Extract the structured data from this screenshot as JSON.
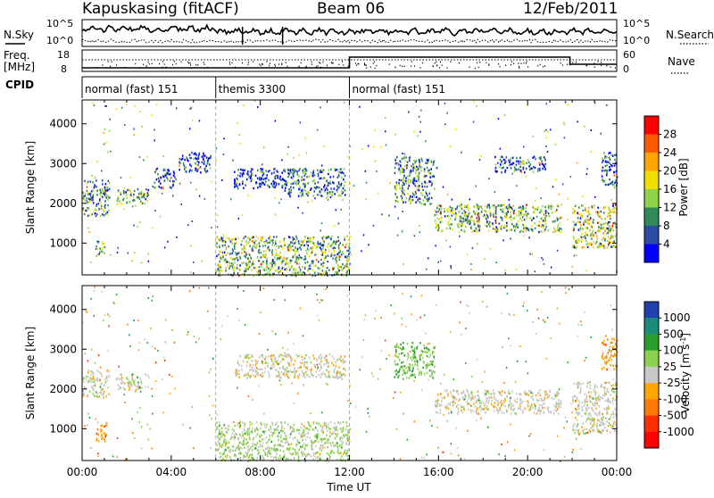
{
  "header": {
    "station": "Kapuskasing (fitACF)",
    "beam": "Beam 06",
    "date": "12/Feb/2011"
  },
  "summary_panels": {
    "nsky_label": "N.Sky",
    "nsearch_label": "N.Search",
    "noise_ticks": [
      "10^5",
      "10^0"
    ],
    "freq_label_line1": "Freq.",
    "freq_label_line2": "[MHz]",
    "freq_ticks": [
      "18",
      "8"
    ],
    "nave_label": "Nave",
    "nave_ticks": [
      "60",
      "0"
    ],
    "cpid_label": "CPID",
    "cpid_segments": [
      {
        "label": "normal (fast) 151",
        "start_hour": 0,
        "end_hour": 6
      },
      {
        "label": "themis 3300",
        "start_hour": 6,
        "end_hour": 12
      },
      {
        "label": "normal (fast) 151",
        "start_hour": 12,
        "end_hour": 24
      }
    ]
  },
  "colors": {
    "power_scale": [
      "#0000ff",
      "#2a4ba6",
      "#2e8b57",
      "#8fd44b",
      "#f0e000",
      "#ffa500",
      "#ff5a00",
      "#ff0000"
    ],
    "velocity_scale": [
      "#2040b0",
      "#1a8c7a",
      "#2aa02a",
      "#8cd050",
      "#c8c8c8",
      "#ffa500",
      "#ff7a00",
      "#ff3000",
      "#ff0000"
    ],
    "axis": "#000000",
    "gridline": "#999999"
  },
  "chart_data": [
    {
      "type": "heatmap",
      "name": "power",
      "ylabel": "Slant Range [km]",
      "y_ticks": [
        1000,
        2000,
        3000,
        4000
      ],
      "ylim": [
        200,
        4600
      ],
      "xlim": [
        0,
        24
      ],
      "colorbar_label": "Power [dB]",
      "colorbar_ticks": [
        "28",
        "24",
        "20",
        "16",
        "12",
        "8",
        "4"
      ],
      "value_range": [
        0,
        30
      ],
      "features": [
        {
          "t0": 0.0,
          "t1": 1.2,
          "r0": 1700,
          "r1": 2600,
          "v": 10
        },
        {
          "t0": 0.6,
          "t1": 1.0,
          "r0": 700,
          "r1": 1100,
          "v": 14
        },
        {
          "t0": 1.5,
          "t1": 3.0,
          "r0": 2000,
          "r1": 2400,
          "v": 10
        },
        {
          "t0": 3.2,
          "t1": 4.2,
          "r0": 2400,
          "r1": 2900,
          "v": 6
        },
        {
          "t0": 4.3,
          "t1": 5.8,
          "r0": 2800,
          "r1": 3300,
          "v": 5
        },
        {
          "t0": 6.8,
          "t1": 9.0,
          "r0": 2400,
          "r1": 2900,
          "v": 4
        },
        {
          "t0": 9.0,
          "t1": 11.8,
          "r0": 2200,
          "r1": 2900,
          "v": 8
        },
        {
          "t0": 6.0,
          "t1": 12.0,
          "r0": 200,
          "r1": 1200,
          "v": 12
        },
        {
          "t0": 14.0,
          "t1": 15.8,
          "r0": 2000,
          "r1": 3200,
          "v": 9
        },
        {
          "t0": 15.8,
          "t1": 21.5,
          "r0": 1300,
          "r1": 2000,
          "v": 12
        },
        {
          "t0": 18.5,
          "t1": 20.8,
          "r0": 2800,
          "r1": 3200,
          "v": 6
        },
        {
          "t0": 22.0,
          "t1": 24.0,
          "r0": 900,
          "r1": 2000,
          "v": 14
        },
        {
          "t0": 23.3,
          "t1": 24.0,
          "r0": 2400,
          "r1": 3300,
          "v": 6
        }
      ]
    },
    {
      "type": "heatmap",
      "name": "velocity",
      "ylabel": "Slant Range [km]",
      "y_ticks": [
        1000,
        2000,
        3000,
        4000
      ],
      "ylim": [
        200,
        4600
      ],
      "xlim": [
        0,
        24
      ],
      "xlabel": "Time UT",
      "x_ticks": [
        "00:00",
        "04:00",
        "08:00",
        "12:00",
        "16:00",
        "20:00",
        "00:00"
      ],
      "colorbar_label": "Velocity [m s^-1]",
      "colorbar_ticks": [
        "1000",
        "500",
        "100",
        "25",
        "-25",
        "-100",
        "-500",
        "-1000"
      ],
      "value_range": [
        -1000,
        1000
      ],
      "features": [
        {
          "t0": 0.0,
          "t1": 1.2,
          "r0": 1800,
          "r1": 2500,
          "v": 0
        },
        {
          "t0": 0.6,
          "t1": 1.1,
          "r0": 700,
          "r1": 1200,
          "v": -300
        },
        {
          "t0": 1.5,
          "t1": 3.0,
          "r0": 2000,
          "r1": 2400,
          "v": 0
        },
        {
          "t0": 6.8,
          "t1": 11.8,
          "r0": 2300,
          "r1": 2900,
          "v": 0
        },
        {
          "t0": 6.0,
          "t1": 12.0,
          "r0": 200,
          "r1": 1200,
          "v": 150
        },
        {
          "t0": 14.0,
          "t1": 15.8,
          "r0": 2300,
          "r1": 3200,
          "v": 300
        },
        {
          "t0": 15.8,
          "t1": 21.5,
          "r0": 1400,
          "r1": 2000,
          "v": 0
        },
        {
          "t0": 22.0,
          "t1": 24.0,
          "r0": 900,
          "r1": 2200,
          "v": 0
        },
        {
          "t0": 23.3,
          "t1": 24.0,
          "r0": 2500,
          "r1": 3300,
          "v": -300
        }
      ]
    }
  ]
}
